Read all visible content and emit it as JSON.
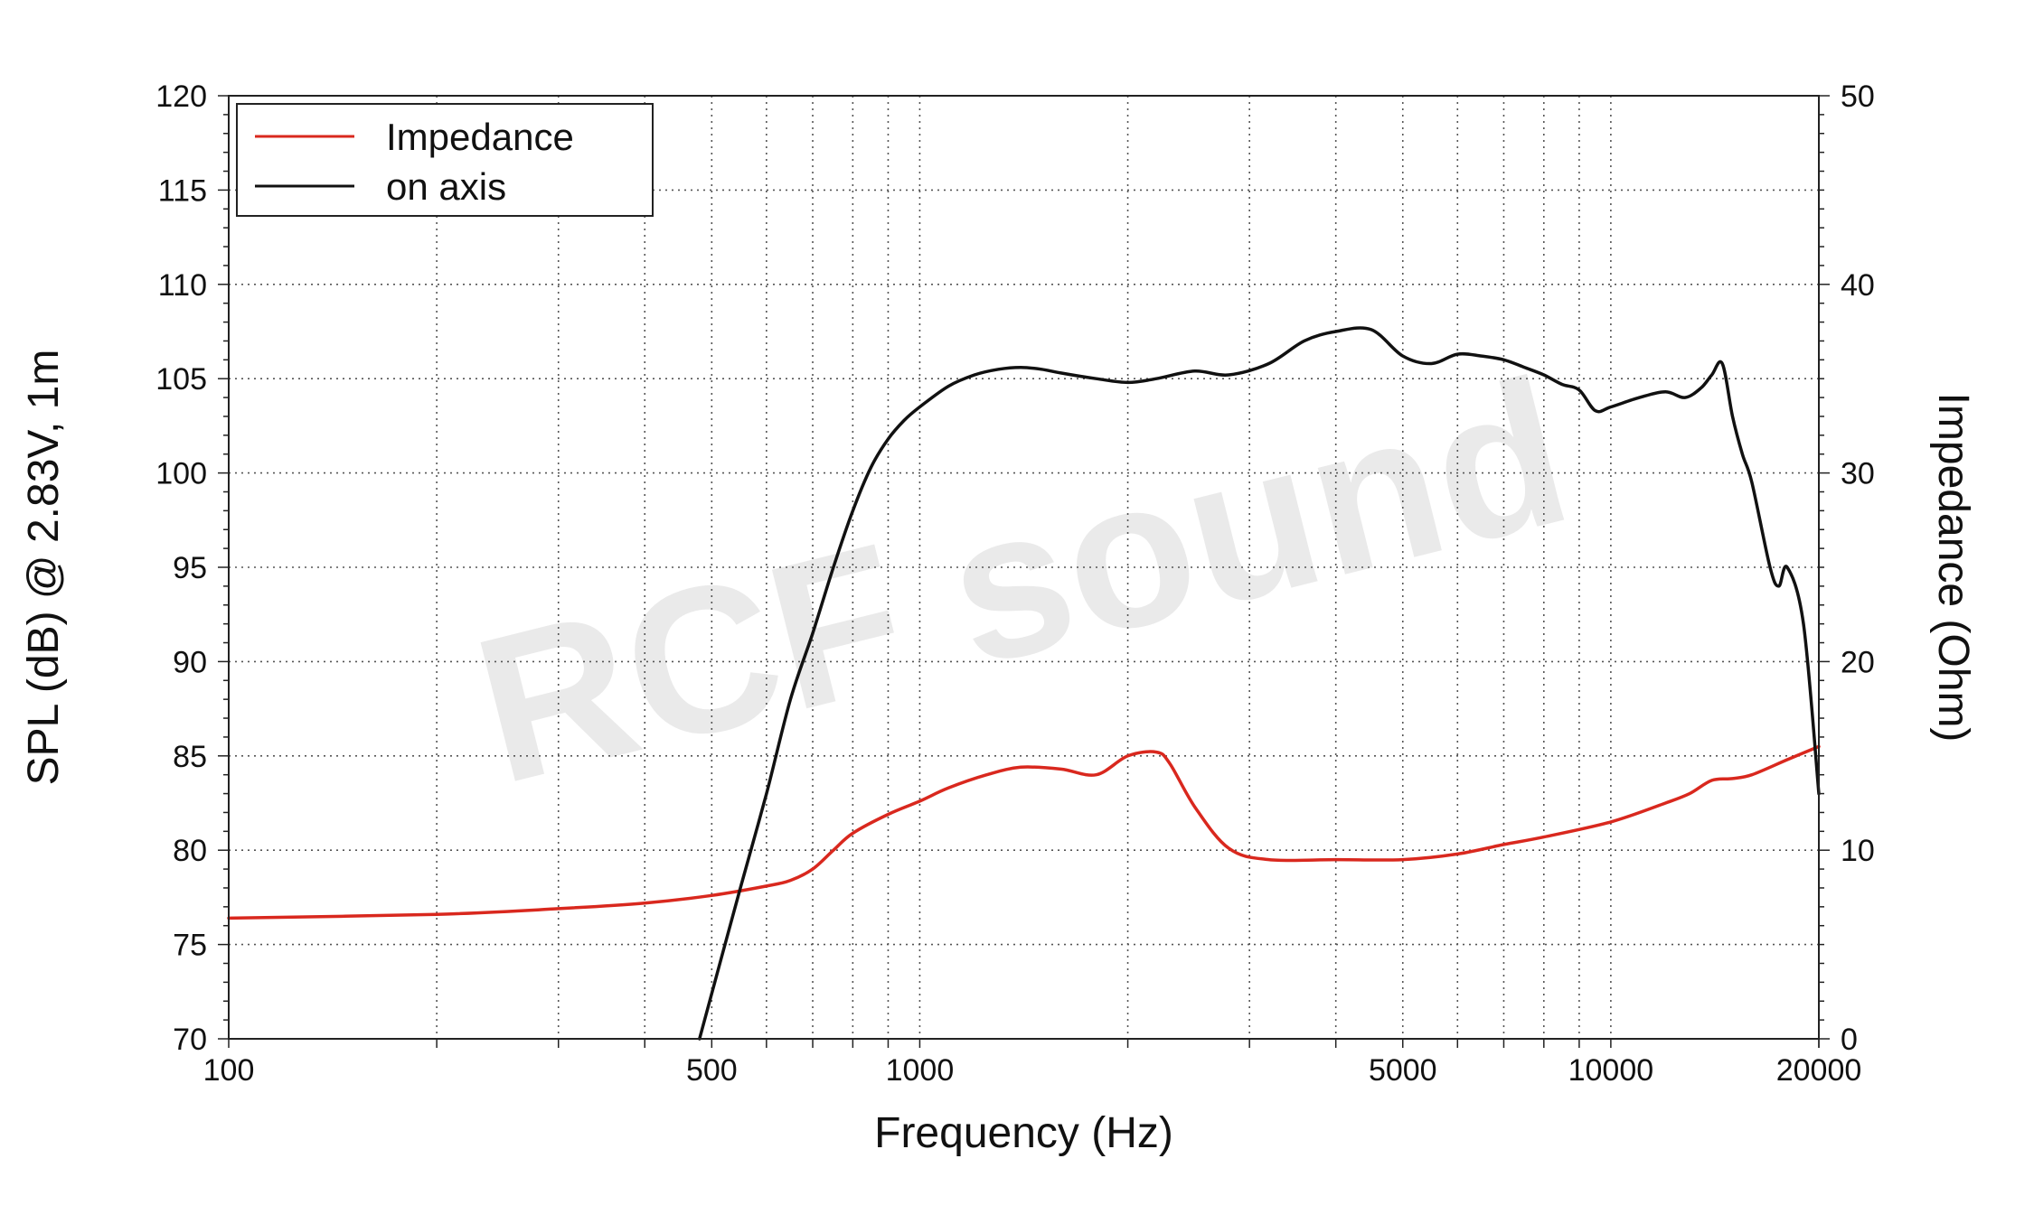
{
  "chart_data": {
    "type": "line",
    "title": "",
    "xlabel": "Frequency (Hz)",
    "ylabel_left": "SPL (dB) @ 2.83V, 1m",
    "ylabel_right": "Impedance (Ohm)",
    "x_scale": "log",
    "xlim": [
      100,
      20000
    ],
    "ylim_left": [
      70,
      120
    ],
    "ylim_right": [
      0,
      50
    ],
    "x_tick_labels": [
      "100",
      "500",
      "1000",
      "5000",
      "10000",
      "20000"
    ],
    "y_left_tick_labels": [
      "70",
      "75",
      "80",
      "85",
      "90",
      "95",
      "100",
      "105",
      "110",
      "115",
      "120"
    ],
    "y_right_tick_labels": [
      "0",
      "10",
      "20",
      "30",
      "40",
      "50"
    ],
    "grid": true,
    "legend_position": "top-left",
    "watermark": "RCF sound",
    "series": [
      {
        "name": "Impedance",
        "axis": "right",
        "color": "#d9281e",
        "x": [
          100,
          200,
          300,
          400,
          500,
          600,
          650,
          700,
          750,
          800,
          900,
          1000,
          1100,
          1250,
          1400,
          1600,
          1800,
          2000,
          2200,
          2300,
          2500,
          2800,
          3200,
          4000,
          5000,
          6000,
          7000,
          8000,
          10000,
          12000,
          13000,
          14000,
          15000,
          16000,
          18000,
          20000
        ],
        "y": [
          6.4,
          6.6,
          6.9,
          7.2,
          7.6,
          8.1,
          8.4,
          9.0,
          10.0,
          10.9,
          11.9,
          12.6,
          13.3,
          14.0,
          14.4,
          14.3,
          14.0,
          15.0,
          15.2,
          14.6,
          12.3,
          10.1,
          9.5,
          9.5,
          9.5,
          9.8,
          10.3,
          10.7,
          11.5,
          12.5,
          13.0,
          13.7,
          13.8,
          14.0,
          14.8,
          15.5
        ]
      },
      {
        "name": "on axis",
        "axis": "left",
        "color": "#111111",
        "x": [
          480,
          550,
          600,
          650,
          700,
          750,
          800,
          850,
          900,
          950,
          1000,
          1100,
          1200,
          1300,
          1400,
          1500,
          1600,
          1800,
          2000,
          2200,
          2500,
          2800,
          3200,
          3600,
          4000,
          4500,
          5000,
          5500,
          6000,
          6500,
          7000,
          7500,
          8000,
          8500,
          9000,
          9500,
          10000,
          11000,
          12000,
          12800,
          13500,
          14000,
          14500,
          15000,
          15500,
          16000,
          17000,
          17500,
          18000,
          19000,
          20000
        ],
        "y": [
          70,
          78,
          83,
          88,
          91.5,
          95,
          98,
          100.3,
          101.8,
          102.8,
          103.5,
          104.6,
          105.2,
          105.5,
          105.6,
          105.5,
          105.3,
          105.0,
          104.8,
          105.0,
          105.4,
          105.2,
          105.8,
          107.0,
          107.5,
          107.6,
          106.2,
          105.8,
          106.3,
          106.2,
          106.0,
          105.6,
          105.2,
          104.7,
          104.4,
          103.3,
          103.5,
          104.0,
          104.3,
          104.0,
          104.5,
          105.2,
          105.8,
          103.0,
          101.0,
          99.5,
          95.0,
          94.0,
          95.0,
          92.0,
          83.0
        ]
      }
    ]
  }
}
